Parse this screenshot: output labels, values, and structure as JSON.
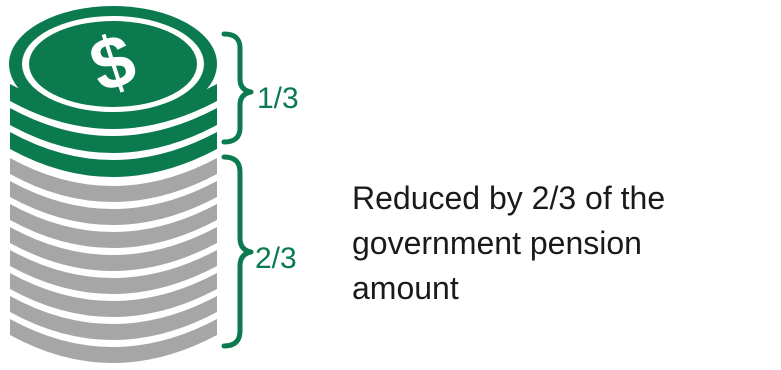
{
  "colors": {
    "green": "#0b7a4f",
    "green_dark": "#065a38",
    "gray": "#a6a6a6",
    "white": "#ffffff",
    "text": "#1a1a1a"
  },
  "icons": {
    "coin_symbol": "dollar-sign-icon"
  },
  "coin_symbol_text": "$",
  "brackets": {
    "top_fraction": "1/3",
    "bottom_fraction": "2/3"
  },
  "description": {
    "line1": "Reduced by 2/3 of the",
    "line2": "government pension",
    "line3": "amount"
  }
}
